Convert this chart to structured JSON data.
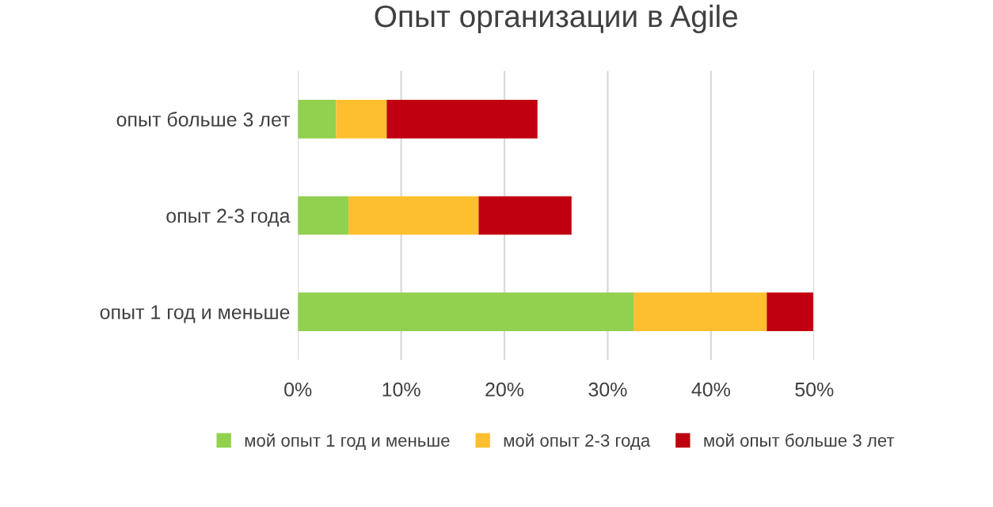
{
  "chart_data": {
    "type": "bar",
    "orientation": "horizontal",
    "stacked": true,
    "title": "Опыт организации в Agile",
    "categories": [
      "опыт больше 3 лет",
      "опыт 2-3 года",
      "опыт 1 год и меньше"
    ],
    "series": [
      {
        "name": "мой опыт 1 год и меньше",
        "color": "#92d050",
        "values": [
          3.7,
          4.9,
          32.5
        ]
      },
      {
        "name": "мой опыт 2-3 года",
        "color": "#fdbf2d",
        "values": [
          4.9,
          12.6,
          12.9
        ]
      },
      {
        "name": "мой опыт больше 3 лет",
        "color": "#c00010",
        "values": [
          14.6,
          9.0,
          4.5
        ]
      }
    ],
    "xlim": [
      0,
      50
    ],
    "xticks": [
      {
        "value": 0,
        "label": "0%"
      },
      {
        "value": 10,
        "label": "10%"
      },
      {
        "value": 20,
        "label": "20%"
      },
      {
        "value": 30,
        "label": "30%"
      },
      {
        "value": 40,
        "label": "40%"
      },
      {
        "value": 50,
        "label": "50%"
      }
    ],
    "grid": "x",
    "legend": "bottom"
  }
}
